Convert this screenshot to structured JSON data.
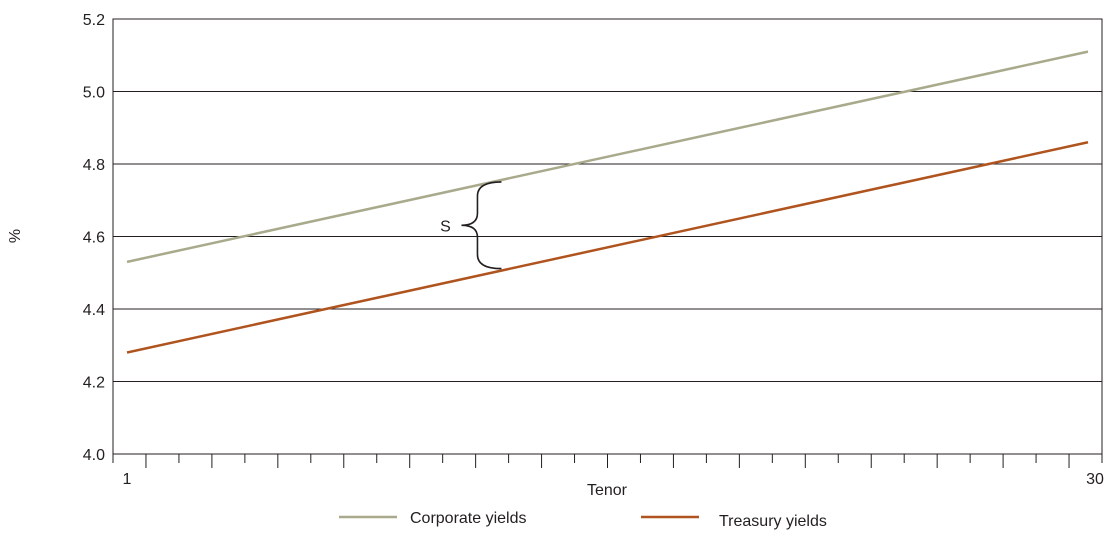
{
  "chart_data": {
    "type": "line",
    "title": "",
    "xlabel": "Tenor",
    "ylabel": "%",
    "xlim": [
      1,
      30
    ],
    "ylim": [
      4.0,
      5.2
    ],
    "x_tick_labels": [
      "1",
      "30"
    ],
    "y_ticks": [
      4.0,
      4.2,
      4.4,
      4.6,
      4.8,
      5.0,
      5.2
    ],
    "y_tick_labels": [
      "4.0",
      "4.2",
      "4.4",
      "4.6",
      "4.8",
      "5.0",
      "5.2"
    ],
    "grid": "horizontal",
    "legend_position": "bottom",
    "x": [
      1,
      30
    ],
    "series": [
      {
        "name": "Corporate yields",
        "color": "#a9a98c",
        "values": [
          4.53,
          5.11
        ]
      },
      {
        "name": "Treasury yields",
        "color": "#b0541f",
        "values": [
          4.28,
          4.86
        ]
      }
    ],
    "annotations": [
      {
        "label": "S",
        "meaning": "bracket spanning the gap between the two yield lines"
      }
    ]
  }
}
